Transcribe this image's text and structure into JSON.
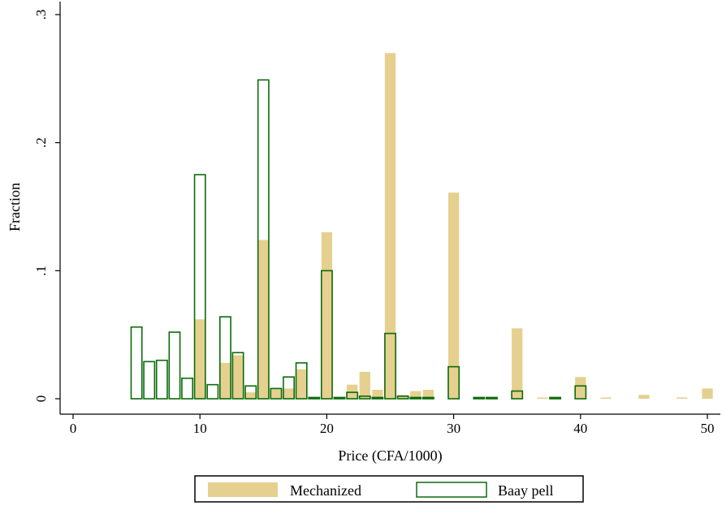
{
  "chart_data": {
    "type": "bar",
    "xlabel": "Price (CFA/1000)",
    "ylabel": "Fraction",
    "xlim": [
      0,
      51
    ],
    "ylim": [
      0,
      0.3
    ],
    "xticks": [
      0,
      10,
      20,
      30,
      40,
      50
    ],
    "xtick_labels": [
      "0",
      "10",
      "20",
      "30",
      "40",
      "50"
    ],
    "yticks": [
      0,
      0.1,
      0.2,
      0.3
    ],
    "ytick_labels": [
      "0",
      ".1",
      ".2",
      ".3"
    ],
    "bin_width": 0.85,
    "grid": false,
    "legend_position": "bottom",
    "series": [
      {
        "name": "Mechanized",
        "style": "filled",
        "color": "#e6d08f",
        "x": [
          10,
          12,
          13,
          14,
          15,
          16,
          17,
          18,
          20,
          22,
          23,
          24,
          25,
          26,
          27,
          28,
          30,
          35,
          37,
          40,
          42,
          45,
          48,
          50
        ],
        "values": [
          0.062,
          0.028,
          0.034,
          0.005,
          0.124,
          0.008,
          0.008,
          0.023,
          0.13,
          0.011,
          0.021,
          0.007,
          0.27,
          0.003,
          0.006,
          0.007,
          0.161,
          0.055,
          0.001,
          0.017,
          0.001,
          0.003,
          0.001,
          0.008
        ]
      },
      {
        "name": "Baay pell",
        "style": "outline",
        "color": "#0a6b0a",
        "x": [
          5,
          6,
          7,
          8,
          9,
          10,
          11,
          12,
          13,
          14,
          15,
          16,
          17,
          18,
          19,
          20,
          21,
          22,
          23,
          24,
          25,
          26,
          27,
          28,
          30,
          32,
          33,
          35,
          38,
          40
        ],
        "values": [
          0.056,
          0.029,
          0.03,
          0.052,
          0.016,
          0.175,
          0.011,
          0.064,
          0.036,
          0.01,
          0.249,
          0.008,
          0.017,
          0.028,
          0.001,
          0.1,
          0.001,
          0.005,
          0.002,
          0.001,
          0.051,
          0.002,
          0.001,
          0.001,
          0.025,
          0.001,
          0.001,
          0.006,
          0.001,
          0.01
        ]
      }
    ]
  }
}
